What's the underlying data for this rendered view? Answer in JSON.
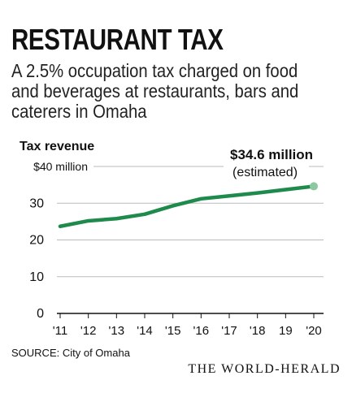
{
  "header": {
    "title": "RESTAURANT TAX",
    "subtitle": "A 2.5% occupation tax charged on food and beverages at restaurants, bars and caterers in Omaha"
  },
  "chart_data": {
    "type": "line",
    "ylabel": "Tax revenue",
    "categories": [
      "'11",
      "'12",
      "'13",
      "'14",
      "'15",
      "'16",
      "'17",
      "'18",
      "19",
      "'20"
    ],
    "series": [
      {
        "values": [
          23.7,
          25.2,
          25.8,
          27.0,
          29.3,
          31.2,
          32.0,
          32.8,
          33.7,
          34.6
        ]
      }
    ],
    "ylim": [
      0,
      40
    ],
    "yticks": [
      0,
      10,
      20,
      30,
      40
    ],
    "ytick_labels": [
      "0",
      "10",
      "20",
      "30",
      "$40 million"
    ],
    "grid": true,
    "annotation": {
      "value": "$34.6 million",
      "note": "(estimated)"
    },
    "colors": {
      "line": "#1e8a4c",
      "endpoint": "#8cc8a0",
      "grid": "#bbbbbb"
    }
  },
  "footer": {
    "source": "SOURCE: City of Omaha",
    "credit": "THE WORLD-HERALD"
  }
}
